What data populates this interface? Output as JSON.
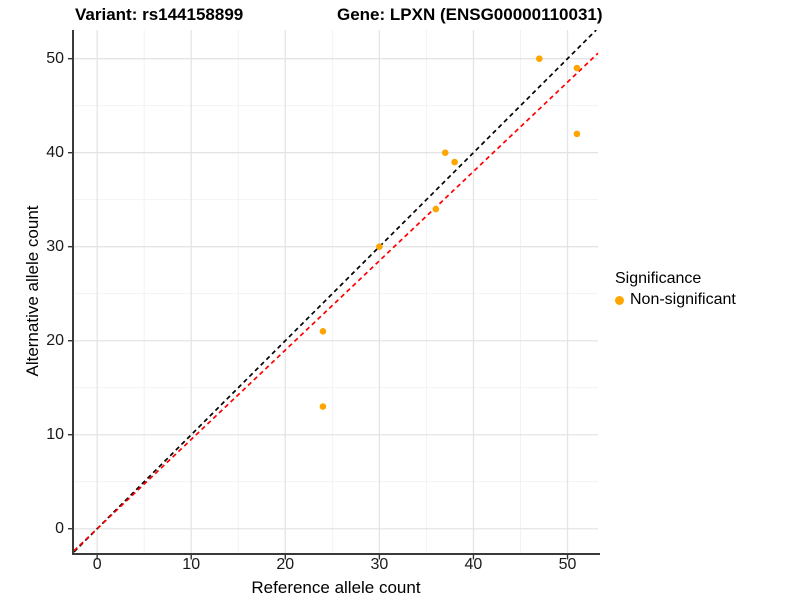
{
  "title": {
    "variant_label": "Variant: rs144158899",
    "gene_label": "Gene: LPXN (ENSG00000110031)"
  },
  "legend": {
    "title": "Significance",
    "position": "right",
    "items": [
      {
        "label": "Non-significant",
        "color": "#FFA500",
        "marker": "circle"
      }
    ]
  },
  "chart_data": {
    "type": "scatter",
    "title": "Variant: rs144158899 | Gene: LPXN (ENSG00000110031)",
    "xlabel": "Reference allele count",
    "ylabel": "Alternative allele count",
    "xlim": [
      -2.46,
      53.24
    ],
    "ylim": [
      -2.58,
      53.05
    ],
    "x_ticks": [
      0,
      10,
      20,
      30,
      40,
      50
    ],
    "y_ticks": [
      0,
      10,
      20,
      30,
      40,
      50
    ],
    "x_minor_ticks": [
      5,
      15,
      25,
      35,
      45
    ],
    "y_minor_ticks": [
      5,
      15,
      25,
      35,
      45
    ],
    "grid": true,
    "legend_position": "right",
    "series": [
      {
        "name": "Non-significant",
        "color": "#FFA500",
        "points": [
          {
            "x": 24,
            "y": 13
          },
          {
            "x": 24,
            "y": 21
          },
          {
            "x": 30,
            "y": 30
          },
          {
            "x": 36,
            "y": 34
          },
          {
            "x": 37,
            "y": 40
          },
          {
            "x": 38,
            "y": 39
          },
          {
            "x": 47,
            "y": 50
          },
          {
            "x": 51,
            "y": 42
          },
          {
            "x": 51,
            "y": 49
          }
        ]
      }
    ],
    "reference_lines": [
      {
        "name": "identity",
        "equation": "y = x",
        "slope": 1,
        "intercept": 0,
        "color": "#000000",
        "dash": true
      },
      {
        "name": "fit",
        "equation": "y = 0.95x",
        "slope": 0.95,
        "intercept": 0,
        "color": "#FF0000",
        "dash": true
      }
    ],
    "colors": {
      "grid_major": "#E4E4E4",
      "grid_minor": "#F1F1F1",
      "axis_line": "#3A3A3A",
      "tick": "#333333",
      "text": "#000000"
    }
  }
}
